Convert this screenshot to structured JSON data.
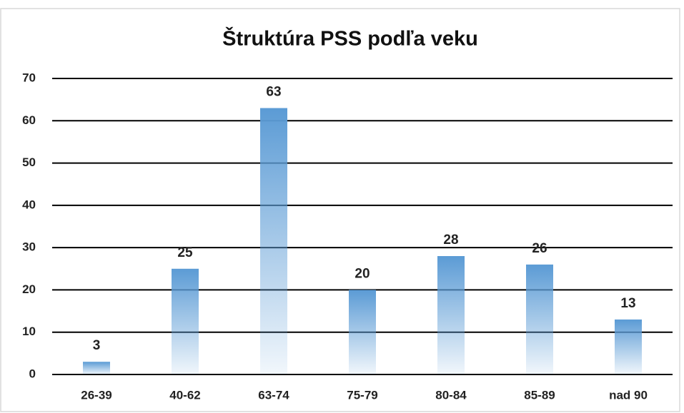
{
  "chart_data": {
    "type": "bar",
    "title": "Štruktúra PSS podľa veku",
    "categories": [
      "26-39",
      "40-62",
      "63-74",
      "75-79",
      "80-84",
      "85-89",
      "nad 90"
    ],
    "values": [
      3,
      25,
      63,
      20,
      28,
      26,
      13
    ],
    "color": "#5b9bd5",
    "ylim": [
      0,
      70
    ],
    "yticks": [
      0,
      10,
      20,
      30,
      40,
      50,
      60,
      70
    ],
    "grid": true,
    "data_labels": true
  }
}
